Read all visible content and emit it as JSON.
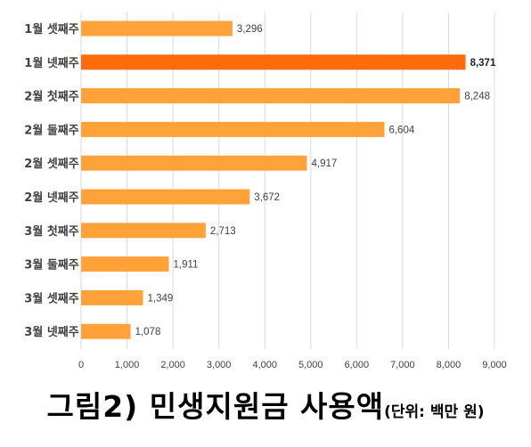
{
  "chart_data": {
    "type": "bar",
    "orientation": "horizontal",
    "categories": [
      "1월 셋째주",
      "1월 넷째주",
      "2월 첫째주",
      "2월 둘째주",
      "2월 셋째주",
      "2월 넷째주",
      "3월 첫째주",
      "3월 둘째주",
      "3월 셋째주",
      "3월 넷째주"
    ],
    "values": [
      3296,
      8371,
      8248,
      6604,
      4917,
      3672,
      2713,
      1911,
      1349,
      1078
    ],
    "value_labels": [
      "3,296",
      "8,371",
      "8,248",
      "6,604",
      "4,917",
      "3,672",
      "2,713",
      "1,911",
      "1,349",
      "1,078"
    ],
    "highlight_index": 1,
    "xlim": [
      0,
      9000
    ],
    "x_ticks": [
      0,
      1000,
      2000,
      3000,
      4000,
      5000,
      6000,
      7000,
      8000,
      9000
    ],
    "x_tick_labels": [
      "0",
      "1,000",
      "2,000",
      "3,000",
      "4,000",
      "5,000",
      "6,000",
      "7,000",
      "8,000",
      "9,000"
    ],
    "grid": "vertical",
    "colors": {
      "bar": "#FFA23A",
      "highlight": "#FF6A0A",
      "grid": "#D9D9D9",
      "text": "#404040"
    }
  },
  "caption": {
    "main": "그림2) 민생지원금 사용액",
    "unit": "(단위: 백만 원)"
  }
}
